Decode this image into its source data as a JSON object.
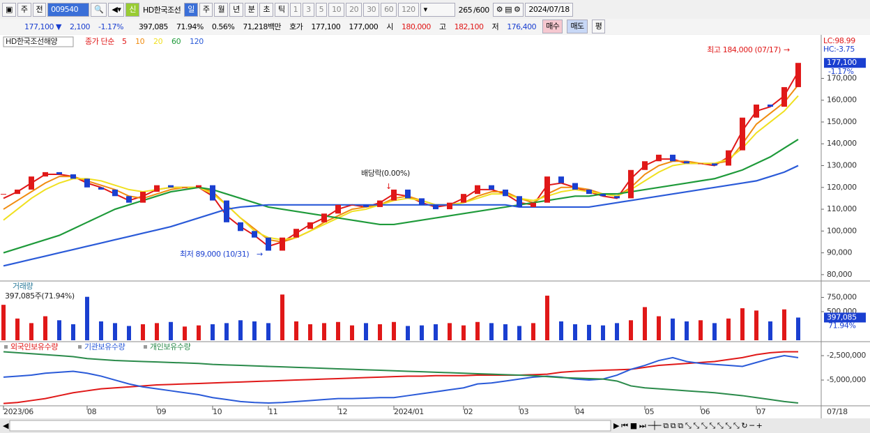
{
  "toolbar": {
    "period": "주",
    "prev": "전",
    "code": "009540",
    "new": "신",
    "name": "HD한국조선",
    "intervals": [
      "일",
      "주",
      "월",
      "년",
      "분",
      "초",
      "틱"
    ],
    "counts": [
      "1",
      "3",
      "5",
      "10",
      "20",
      "30",
      "60",
      "120"
    ],
    "shown": "265",
    "total": "/600",
    "date": "2024/07/18"
  },
  "quote": {
    "price": "177,100 ▼",
    "change": "2,100",
    "change_pct": "-1.17%",
    "volume": "397,085",
    "volume_ratio": "71.94%",
    "turnover": "0.56%",
    "amount": "71,218백만",
    "ask_label": "호가",
    "ask": "177,100",
    "bid": "177,000",
    "open_label": "시",
    "open": "180,000",
    "high_label": "고",
    "high": "182,100",
    "low_label": "저",
    "low": "176,400",
    "buy": "매수",
    "sell": "매도",
    "avg": "평"
  },
  "chart_data": [
    {
      "type": "candle",
      "title": "HD한국조선해양",
      "legend_prefix": "종가 단순",
      "categories": [
        "2023/06",
        null,
        null,
        null,
        null,
        null,
        "08",
        null,
        null,
        null,
        null,
        "09",
        null,
        null,
        null,
        "10",
        null,
        null,
        null,
        "11",
        null,
        null,
        null,
        null,
        "12",
        null,
        null,
        null,
        "2024/01",
        null,
        null,
        null,
        null,
        "02",
        null,
        null,
        null,
        "03",
        null,
        null,
        null,
        "04",
        null,
        null,
        null,
        null,
        "05",
        null,
        null,
        null,
        "06",
        null,
        null,
        null,
        "07",
        null,
        null,
        null
      ],
      "end_label": "07/18",
      "up_color": "#e01818",
      "down_color": "#1a3fd0",
      "close": [
        117000,
        119000,
        125000,
        127000,
        126000,
        124000,
        120000,
        119000,
        116000,
        113000,
        118000,
        121000,
        120000,
        120000,
        121000,
        114000,
        104000,
        100000,
        97000,
        91000,
        97000,
        101000,
        104000,
        108000,
        112000,
        112000,
        111000,
        114000,
        119000,
        115000,
        112000,
        110000,
        113000,
        117000,
        121000,
        119000,
        116000,
        111000,
        113000,
        125000,
        122000,
        119000,
        117000,
        116000,
        115000,
        128000,
        132000,
        135000,
        132000,
        131000,
        131000,
        130000,
        137000,
        152000,
        158000,
        157000,
        166000,
        177100
      ],
      "series": [
        {
          "name": "5",
          "color": "#e01818",
          "values": [
            115000,
            118000,
            122000,
            126000,
            126000,
            125000,
            122000,
            120000,
            117000,
            114000,
            116000,
            119000,
            120000,
            120000,
            120000,
            116000,
            107000,
            102000,
            98000,
            93000,
            95000,
            99000,
            103000,
            106000,
            110000,
            112000,
            111000,
            113000,
            117000,
            116000,
            113000,
            111000,
            112000,
            115000,
            119000,
            119000,
            117000,
            113000,
            112000,
            121000,
            122000,
            120000,
            118000,
            116000,
            115000,
            124000,
            130000,
            133000,
            133000,
            131000,
            131000,
            130000,
            134000,
            146000,
            155000,
            157000,
            162000,
            173000
          ]
        },
        {
          "name": "10",
          "color": "#f08c10",
          "values": [
            110000,
            114000,
            118000,
            122000,
            125000,
            125000,
            123000,
            121000,
            119000,
            116000,
            115000,
            117000,
            119000,
            120000,
            120000,
            118000,
            112000,
            106000,
            101000,
            96000,
            95000,
            97000,
            100000,
            104000,
            107000,
            110000,
            111000,
            112000,
            115000,
            116000,
            114000,
            112000,
            112000,
            113000,
            116000,
            118000,
            118000,
            115000,
            113000,
            117000,
            120000,
            120000,
            119000,
            117000,
            116000,
            120000,
            126000,
            130000,
            132000,
            132000,
            131000,
            131000,
            132000,
            140000,
            149000,
            154000,
            159000,
            167000
          ]
        },
        {
          "name": "20",
          "color": "#f0e020",
          "values": [
            105000,
            110000,
            115000,
            119000,
            122000,
            124000,
            124000,
            123000,
            121000,
            119000,
            118000,
            119000,
            120000,
            120000,
            120000,
            117000,
            112000,
            106000,
            100000,
            97000,
            96000,
            97000,
            100000,
            103000,
            106000,
            109000,
            110000,
            112000,
            114000,
            115000,
            114000,
            112000,
            112000,
            113000,
            115000,
            117000,
            117000,
            115000,
            114000,
            116000,
            118000,
            119000,
            118000,
            117000,
            116000,
            119000,
            123000,
            127000,
            130000,
            131000,
            131000,
            131000,
            133000,
            138000,
            145000,
            150000,
            155000,
            162000
          ]
        },
        {
          "name": "60",
          "color": "#1e9a3a",
          "values": [
            90000,
            92000,
            94000,
            96000,
            98000,
            101000,
            104000,
            107000,
            110000,
            112000,
            114000,
            116000,
            118000,
            119000,
            120000,
            119000,
            117000,
            115000,
            113000,
            111000,
            110000,
            109000,
            108000,
            107000,
            106000,
            105000,
            104000,
            103000,
            103000,
            104000,
            105000,
            106000,
            107000,
            108000,
            109000,
            110000,
            111000,
            112000,
            113000,
            114000,
            115000,
            116000,
            116000,
            117000,
            117000,
            118000,
            119000,
            120000,
            121000,
            122000,
            123000,
            124000,
            126000,
            128000,
            131000,
            134000,
            138000,
            142000
          ]
        },
        {
          "name": "120",
          "color": "#2a5ad8",
          "values": [
            84000,
            85500,
            87000,
            88500,
            90000,
            91500,
            93000,
            94500,
            96000,
            97500,
            99000,
            100500,
            102000,
            104000,
            106000,
            108000,
            110000,
            111000,
            111500,
            112000,
            112000,
            112000,
            112000,
            112000,
            112000,
            112000,
            112000,
            112000,
            112000,
            112000,
            112000,
            112000,
            112000,
            112000,
            112000,
            112000,
            112000,
            111000,
            111000,
            111000,
            111000,
            111000,
            111000,
            112000,
            113000,
            114000,
            115000,
            116000,
            117000,
            118000,
            119000,
            120000,
            121000,
            122000,
            123000,
            125000,
            127000,
            130000
          ]
        }
      ],
      "ylim": [
        77400,
        189000
      ],
      "yticks": [
        {
          "value": 80000,
          "label": "80,000"
        },
        {
          "value": 90000,
          "label": "90,000"
        },
        {
          "value": 100000,
          "label": "100,000"
        },
        {
          "value": 110000,
          "label": "110,000"
        },
        {
          "value": 120000,
          "label": "120,000"
        },
        {
          "value": 130000,
          "label": "130,000"
        },
        {
          "value": 140000,
          "label": "140,000"
        },
        {
          "value": 150000,
          "label": "150,000"
        },
        {
          "value": 160000,
          "label": "160,000"
        },
        {
          "value": 170000,
          "label": "170,000"
        }
      ],
      "high_annotation": "최고 184,000 (07/17)",
      "low_annotation": "최저 89,000 (10/31)",
      "dividend_annotation": "배당락(0.00%)",
      "lc": "LC:98.99",
      "hc": "HC:-3.75",
      "last_label": "177,100",
      "last_change": "-1.17%"
    },
    {
      "type": "bar",
      "title": "거래량",
      "subtitle": "397,085주(71.94%)",
      "values": [
        620000,
        380000,
        300000,
        420000,
        350000,
        280000,
        760000,
        330000,
        300000,
        250000,
        280000,
        300000,
        320000,
        240000,
        260000,
        280000,
        300000,
        350000,
        330000,
        300000,
        800000,
        330000,
        280000,
        300000,
        320000,
        260000,
        300000,
        280000,
        320000,
        250000,
        260000,
        280000,
        300000,
        260000,
        320000,
        300000,
        280000,
        250000,
        300000,
        780000,
        330000,
        280000,
        270000,
        260000,
        300000,
        350000,
        580000,
        420000,
        380000,
        330000,
        350000,
        300000,
        380000,
        560000,
        520000,
        330000,
        540000,
        397085
      ],
      "colors": [
        "#e01818",
        "#e01818",
        "#e01818",
        "#e01818",
        "#1a3fd0",
        "#1a3fd0",
        "#1a3fd0",
        "#1a3fd0",
        "#1a3fd0",
        "#1a3fd0",
        "#e01818",
        "#e01818",
        "#1a3fd0",
        "#e01818",
        "#e01818",
        "#1a3fd0",
        "#1a3fd0",
        "#1a3fd0",
        "#1a3fd0",
        "#1a3fd0",
        "#e01818",
        "#e01818",
        "#e01818",
        "#e01818",
        "#e01818",
        "#e01818",
        "#1a3fd0",
        "#e01818",
        "#e01818",
        "#1a3fd0",
        "#1a3fd0",
        "#1a3fd0",
        "#e01818",
        "#e01818",
        "#e01818",
        "#1a3fd0",
        "#1a3fd0",
        "#1a3fd0",
        "#e01818",
        "#e01818",
        "#1a3fd0",
        "#1a3fd0",
        "#1a3fd0",
        "#1a3fd0",
        "#1a3fd0",
        "#e01818",
        "#e01818",
        "#e01818",
        "#1a3fd0",
        "#1a3fd0",
        "#e01818",
        "#1a3fd0",
        "#e01818",
        "#e01818",
        "#e01818",
        "#1a3fd0",
        "#e01818",
        "#1a3fd0"
      ],
      "ylim": [
        0,
        1000000
      ],
      "yticks": [
        {
          "value": 500000,
          "label": "500,000"
        },
        {
          "value": 750000,
          "label": "750,000"
        }
      ],
      "last_label": "397,085",
      "last_ratio": "71.94%"
    },
    {
      "type": "line",
      "series": [
        {
          "name": "외국인보유수량",
          "color": "#e01818",
          "values": [
            -7400000,
            -7300000,
            -7100000,
            -6900000,
            -6600000,
            -6300000,
            -6100000,
            -5900000,
            -5800000,
            -5700000,
            -5600000,
            -5500000,
            -5450000,
            -5400000,
            -5350000,
            -5300000,
            -5250000,
            -5200000,
            -5150000,
            -5100000,
            -5050000,
            -5000000,
            -4950000,
            -4900000,
            -4850000,
            -4800000,
            -4750000,
            -4700000,
            -4650000,
            -4600000,
            -4600000,
            -4550000,
            -4550000,
            -4550000,
            -4500000,
            -4500000,
            -4500000,
            -4500000,
            -4450000,
            -4400000,
            -4200000,
            -4100000,
            -4050000,
            -4000000,
            -3950000,
            -3900000,
            -3700000,
            -3500000,
            -3400000,
            -3300000,
            -3200000,
            -3100000,
            -2900000,
            -2700000,
            -2400000,
            -2200000,
            -2100000,
            -2100000
          ]
        },
        {
          "name": "기관보유수량",
          "color": "#2a5ad8",
          "values": [
            -4700000,
            -4600000,
            -4500000,
            -4300000,
            -4200000,
            -4100000,
            -4300000,
            -4600000,
            -5000000,
            -5400000,
            -5700000,
            -5900000,
            -6100000,
            -6300000,
            -6500000,
            -6800000,
            -7000000,
            -7200000,
            -7300000,
            -7350000,
            -7300000,
            -7200000,
            -7100000,
            -7000000,
            -6900000,
            -6900000,
            -6850000,
            -6800000,
            -6800000,
            -6600000,
            -6400000,
            -6200000,
            -6000000,
            -5800000,
            -5400000,
            -5300000,
            -5100000,
            -4900000,
            -4700000,
            -4600000,
            -4700000,
            -4900000,
            -5000000,
            -4900000,
            -4500000,
            -3900000,
            -3500000,
            -3000000,
            -2700000,
            -3100000,
            -3300000,
            -3400000,
            -3500000,
            -3600000,
            -3200000,
            -2800000,
            -2500000,
            -2700000
          ]
        },
        {
          "name": "개인보유수량",
          "color": "#2a8a4a",
          "values": [
            -2100000,
            -2200000,
            -2300000,
            -2400000,
            -2500000,
            -2600000,
            -2800000,
            -2900000,
            -3000000,
            -3050000,
            -3100000,
            -3150000,
            -3200000,
            -3250000,
            -3300000,
            -3400000,
            -3450000,
            -3500000,
            -3550000,
            -3600000,
            -3650000,
            -3700000,
            -3750000,
            -3800000,
            -3850000,
            -3900000,
            -3950000,
            -4000000,
            -4050000,
            -4100000,
            -4150000,
            -4200000,
            -4250000,
            -4300000,
            -4350000,
            -4400000,
            -4450000,
            -4500000,
            -4550000,
            -4650000,
            -4750000,
            -4800000,
            -4850000,
            -4900000,
            -5100000,
            -5600000,
            -5800000,
            -5900000,
            -6000000,
            -6100000,
            -6200000,
            -6300000,
            -6450000,
            -6600000,
            -6800000,
            -7000000,
            -7200000,
            -7350000
          ]
        }
      ],
      "ylim": [
        -7640000,
        -1210000
      ],
      "yticks": [
        {
          "value": -2500000,
          "label": "-2,500,000"
        },
        {
          "value": -5000000,
          "label": "-5,000,000"
        }
      ]
    }
  ]
}
